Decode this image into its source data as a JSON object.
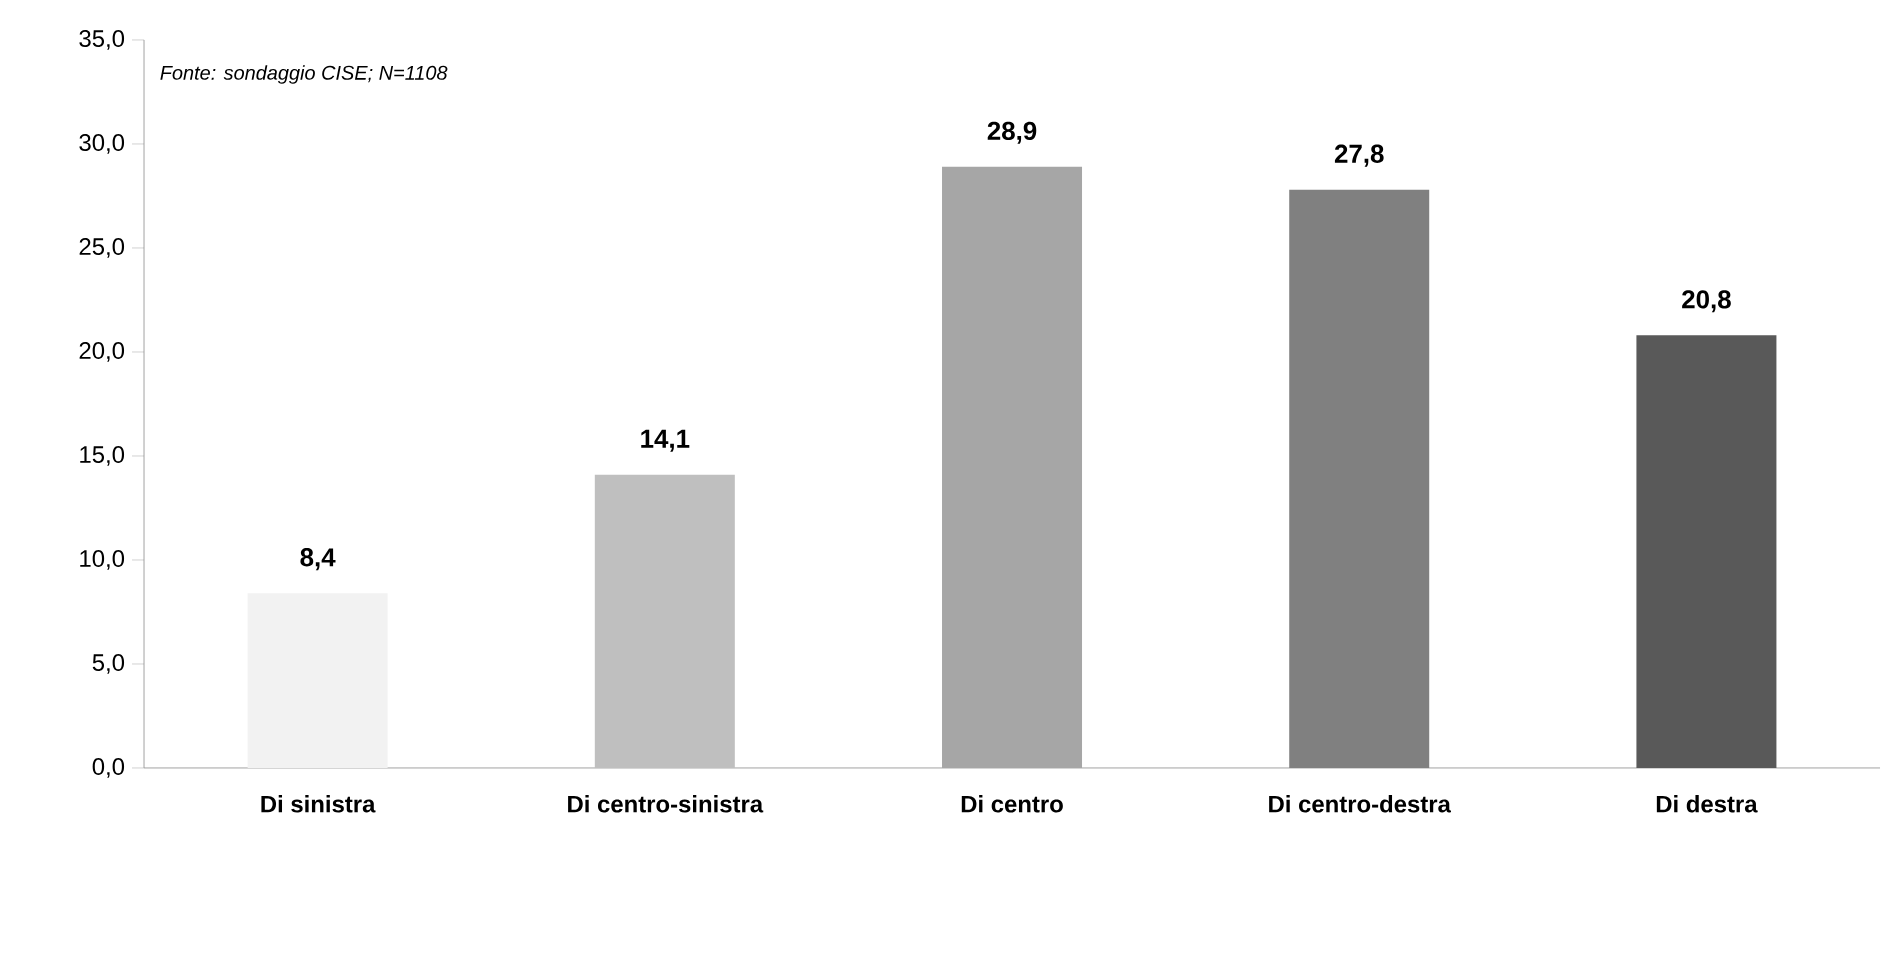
{
  "chart_data": {
    "type": "bar",
    "categories": [
      "Di sinistra",
      "Di centro-sinistra",
      "Di centro",
      "Di centro-destra",
      "Di destra"
    ],
    "values": [
      8.4,
      14.1,
      28.9,
      27.8,
      20.8
    ],
    "value_labels": [
      "8,4",
      "14,1",
      "28,9",
      "27,8",
      "20,8"
    ],
    "colors": [
      "#f2f2f2",
      "#bfbfbf",
      "#a6a6a6",
      "#808080",
      "#595959"
    ],
    "ylim": [
      0,
      35
    ],
    "yticks": [
      {
        "value": 0,
        "label": "0,0"
      },
      {
        "value": 5,
        "label": "5,0"
      },
      {
        "value": 10,
        "label": "10,0"
      },
      {
        "value": 15,
        "label": "15,0"
      },
      {
        "value": 20,
        "label": "20,0"
      },
      {
        "value": 25,
        "label": "25,0"
      },
      {
        "value": 30,
        "label": "30,0"
      },
      {
        "value": 35,
        "label": "35,0"
      }
    ],
    "annotations": [
      "Fonte: sondaggio CISE; N=1108"
    ]
  }
}
